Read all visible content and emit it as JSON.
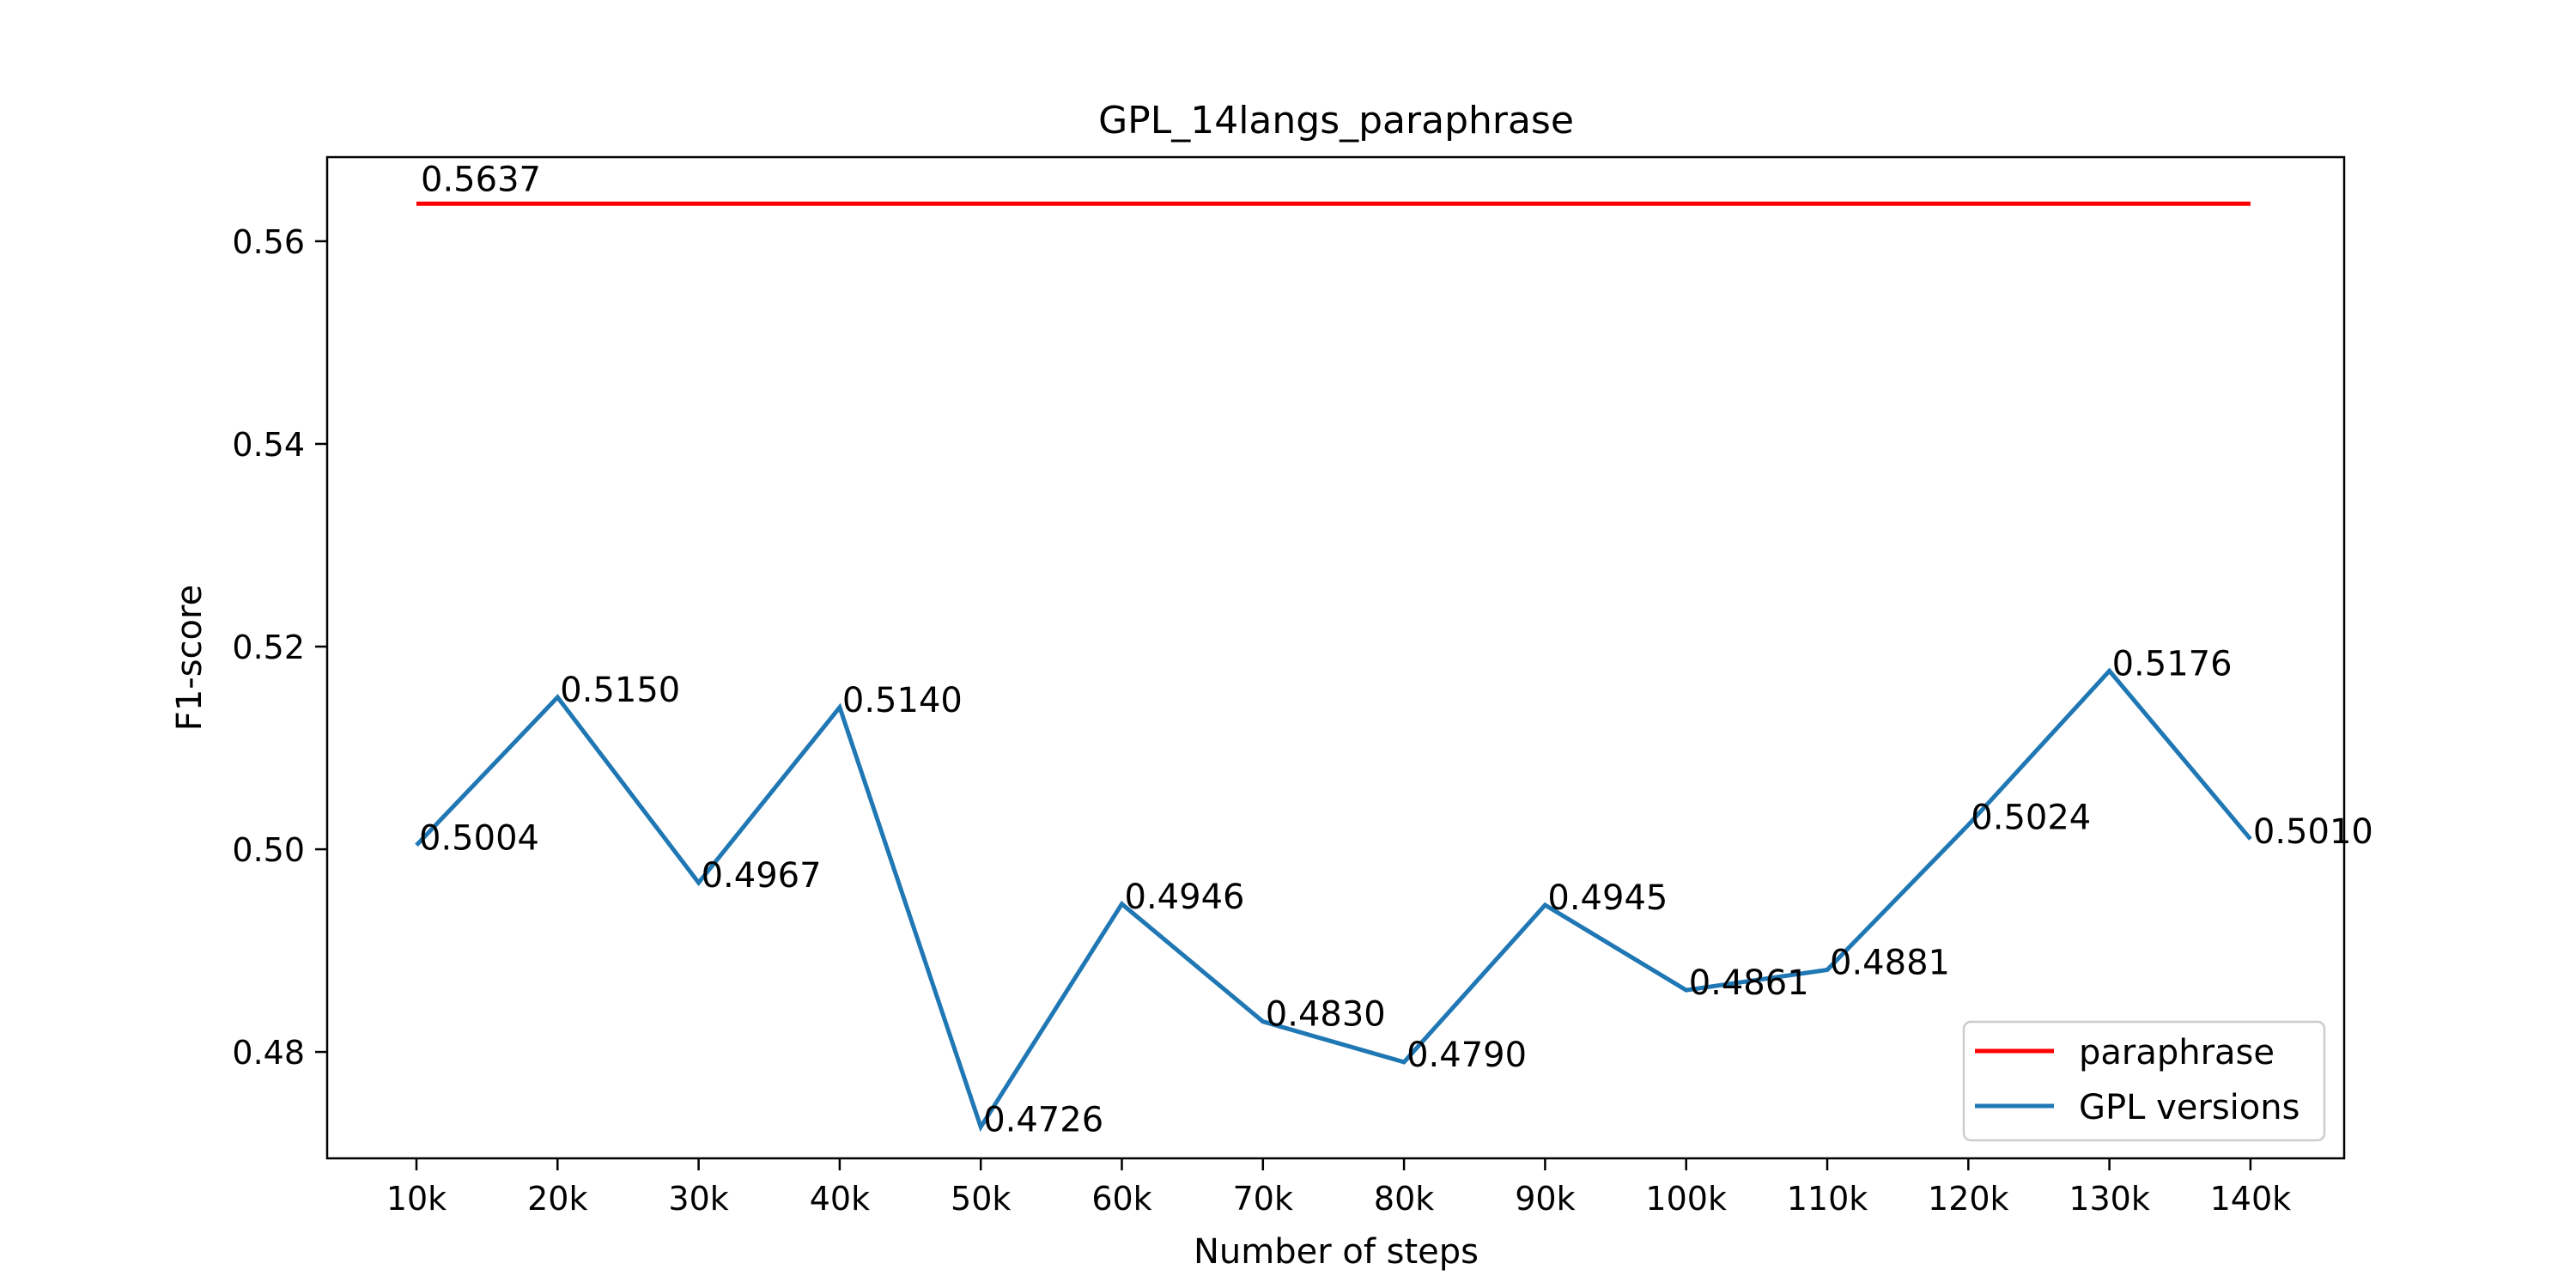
{
  "chart_data": {
    "type": "line",
    "title": "GPL_14langs_paraphrase",
    "xlabel": "Number of steps",
    "ylabel": "F1-score",
    "categories": [
      "10k",
      "20k",
      "30k",
      "40k",
      "50k",
      "60k",
      "70k",
      "80k",
      "90k",
      "100k",
      "110k",
      "120k",
      "130k",
      "140k"
    ],
    "ylim": [
      0.4695,
      0.5683
    ],
    "yticks": [
      0.48,
      0.5,
      0.52,
      0.54,
      0.56
    ],
    "ytick_labels": [
      "0.48",
      "0.50",
      "0.52",
      "0.54",
      "0.56"
    ],
    "grid": false,
    "legend_position": "lower-right",
    "series": [
      {
        "name": "paraphrase",
        "color": "#ff0000",
        "values": [
          0.5637,
          0.5637,
          0.5637,
          0.5637,
          0.5637,
          0.5637,
          0.5637,
          0.5637,
          0.5637,
          0.5637,
          0.5637,
          0.5637,
          0.5637,
          0.5637
        ],
        "annotations": [
          {
            "index": 0,
            "text": "0.5637"
          }
        ]
      },
      {
        "name": "GPL versions",
        "color": "#1f77b4",
        "values": [
          0.5004,
          0.515,
          0.4967,
          0.514,
          0.4726,
          0.4946,
          0.483,
          0.479,
          0.4945,
          0.4861,
          0.4881,
          0.5024,
          0.5176,
          0.501
        ],
        "labels": [
          "0.5004",
          "0.5150",
          "0.4967",
          "0.5140",
          "0.4726",
          "0.4946",
          "0.4830",
          "0.4790",
          "0.4945",
          "0.4861",
          "0.4881",
          "0.5024",
          "0.5176",
          "0.5010"
        ]
      }
    ]
  }
}
